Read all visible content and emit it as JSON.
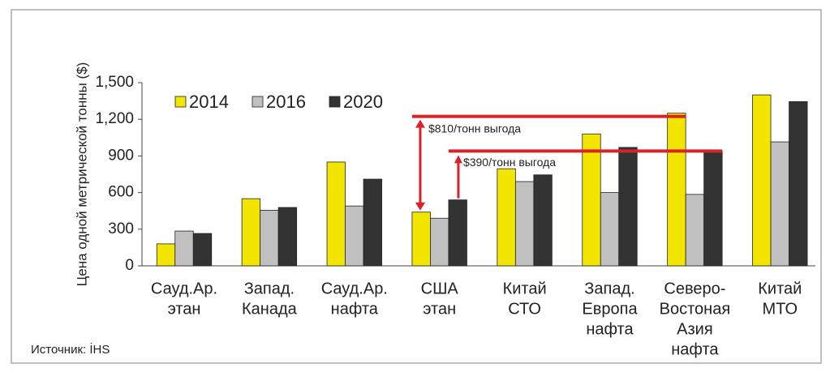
{
  "chart_data": {
    "type": "bar",
    "ylabel": "Цена одной метрической тонны ($)",
    "categories": [
      [
        "Сауд.Ар.",
        "этан"
      ],
      [
        "Запад.",
        "Канада"
      ],
      [
        "Сауд.Ар.",
        "нафта"
      ],
      [
        "США",
        "этан"
      ],
      [
        "Китай",
        "СТО"
      ],
      [
        "Запад.",
        "Европа",
        "нафта"
      ],
      [
        "Северо-",
        "Востоная",
        "Азия",
        "нафта"
      ],
      [
        "Китай",
        "МТО"
      ]
    ],
    "series": [
      {
        "name": "2014",
        "color": "#f2e600",
        "values": [
          180,
          550,
          850,
          440,
          795,
          1080,
          1250,
          1400
        ]
      },
      {
        "name": "2016",
        "color": "#c0c0c0",
        "values": [
          285,
          455,
          490,
          390,
          690,
          600,
          585,
          1015
        ]
      },
      {
        "name": "2020",
        "color": "#333333",
        "values": [
          265,
          478,
          710,
          540,
          745,
          970,
          940,
          1345
        ]
      }
    ],
    "ylim": [
      0,
      1500
    ],
    "yticks": [
      0,
      300,
      600,
      900,
      {
        "value": 1200,
        "label": "1,200"
      },
      {
        "value": 1500,
        "label": "1,500"
      }
    ],
    "annotations": [
      "$810/тонн выгода",
      "$390/тонн выгода"
    ],
    "source": "Источник: İHS",
    "legend": "top-left"
  }
}
